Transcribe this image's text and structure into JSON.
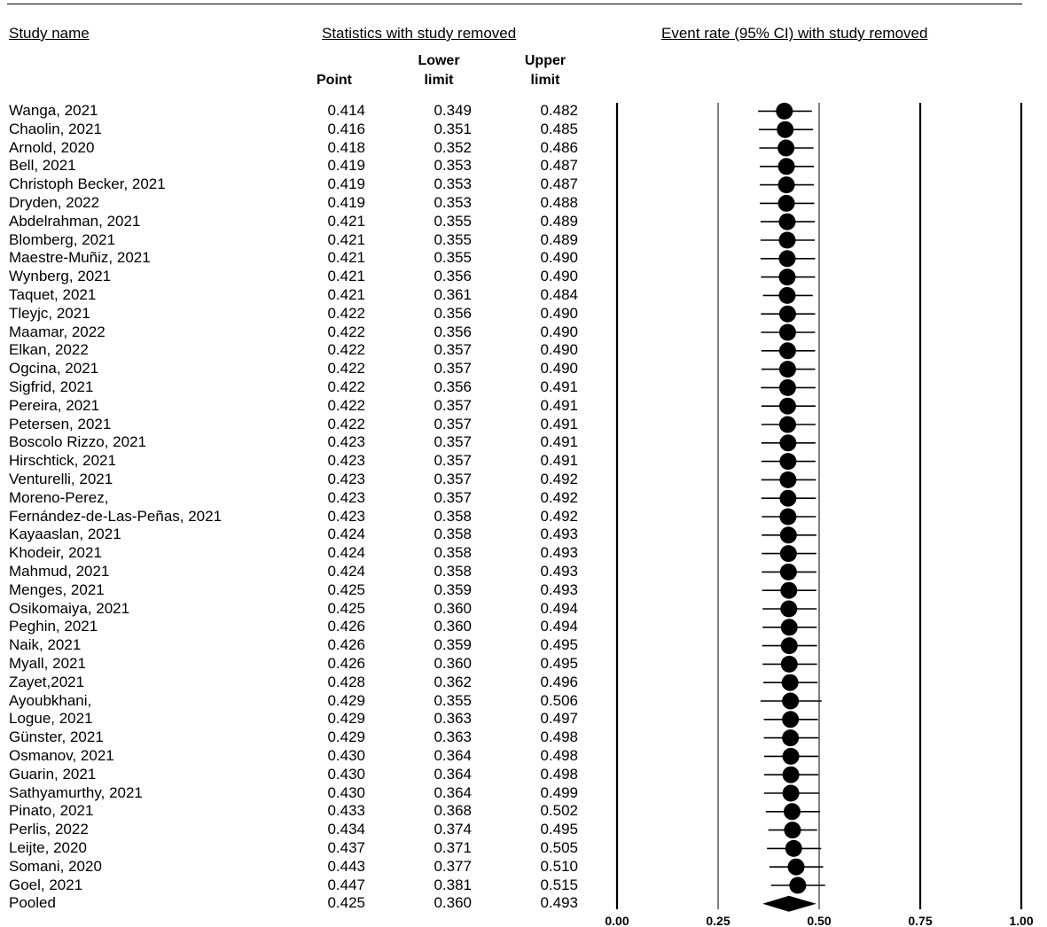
{
  "headers": {
    "study_name": "Study name",
    "statistics": "Statistics with study removed",
    "plot_title": "Event rate (95% CI) with study removed",
    "point": "Point",
    "lower": "Lower limit",
    "upper": "Upper limit"
  },
  "chart_data": {
    "type": "forest",
    "xlim": [
      0,
      1
    ],
    "ticks": [
      "0.00",
      "0.25",
      "0.50",
      "0.75",
      "1.00"
    ],
    "rows": [
      {
        "study": "Wanga, 2021",
        "point": "0.414",
        "lower": "0.349",
        "upper": "0.482"
      },
      {
        "study": "Chaolin, 2021",
        "point": "0.416",
        "lower": "0.351",
        "upper": "0.485"
      },
      {
        "study": "Arnold, 2020",
        "point": "0.418",
        "lower": "0.352",
        "upper": "0.486"
      },
      {
        "study": "Bell, 2021",
        "point": "0.419",
        "lower": "0.353",
        "upper": "0.487"
      },
      {
        "study": "Christoph Becker, 2021",
        "point": "0.419",
        "lower": "0.353",
        "upper": "0.487"
      },
      {
        "study": "Dryden, 2022",
        "point": "0.419",
        "lower": "0.353",
        "upper": "0.488"
      },
      {
        "study": "Abdelrahman, 2021",
        "point": "0.421",
        "lower": "0.355",
        "upper": "0.489"
      },
      {
        "study": "Blomberg, 2021",
        "point": "0.421",
        "lower": "0.355",
        "upper": "0.489"
      },
      {
        "study": "Maestre-Muñiz, 2021",
        "point": "0.421",
        "lower": "0.355",
        "upper": "0.490"
      },
      {
        "study": "Wynberg, 2021",
        "point": "0.421",
        "lower": "0.356",
        "upper": "0.490"
      },
      {
        "study": "Taquet, 2021",
        "point": "0.421",
        "lower": "0.361",
        "upper": "0.484"
      },
      {
        "study": "Tleyjc, 2021",
        "point": "0.422",
        "lower": "0.356",
        "upper": "0.490"
      },
      {
        "study": "Maamar, 2022",
        "point": "0.422",
        "lower": "0.356",
        "upper": "0.490"
      },
      {
        "study": "Elkan, 2022",
        "point": "0.422",
        "lower": "0.357",
        "upper": "0.490"
      },
      {
        "study": "Ogcina, 2021",
        "point": "0.422",
        "lower": "0.357",
        "upper": "0.490"
      },
      {
        "study": "Sigfrid, 2021",
        "point": "0.422",
        "lower": "0.356",
        "upper": "0.491"
      },
      {
        "study": "Pereira, 2021",
        "point": "0.422",
        "lower": "0.357",
        "upper": "0.491"
      },
      {
        "study": "Petersen, 2021",
        "point": "0.422",
        "lower": "0.357",
        "upper": "0.491"
      },
      {
        "study": "Boscolo Rizzo, 2021",
        "point": "0.423",
        "lower": "0.357",
        "upper": "0.491"
      },
      {
        "study": "Hirschtick, 2021",
        "point": "0.423",
        "lower": "0.357",
        "upper": "0.491"
      },
      {
        "study": "Venturelli, 2021",
        "point": "0.423",
        "lower": "0.357",
        "upper": "0.492"
      },
      {
        "study": "Moreno-Perez,",
        "point": "0.423",
        "lower": "0.357",
        "upper": "0.492"
      },
      {
        "study": "Fernández-de-Las-Peñas, 2021",
        "point": "0.423",
        "lower": "0.358",
        "upper": "0.492"
      },
      {
        "study": "Kayaaslan, 2021",
        "point": "0.424",
        "lower": "0.358",
        "upper": "0.493"
      },
      {
        "study": "Khodeir, 2021",
        "point": "0.424",
        "lower": "0.358",
        "upper": "0.493"
      },
      {
        "study": "Mahmud, 2021",
        "point": "0.424",
        "lower": "0.358",
        "upper": "0.493"
      },
      {
        "study": "Menges, 2021",
        "point": "0.425",
        "lower": "0.359",
        "upper": "0.493"
      },
      {
        "study": "Osikomaiya, 2021",
        "point": "0.425",
        "lower": "0.360",
        "upper": "0.494"
      },
      {
        "study": "Peghin, 2021",
        "point": "0.426",
        "lower": "0.360",
        "upper": "0.494"
      },
      {
        "study": "Naik, 2021",
        "point": "0.426",
        "lower": "0.359",
        "upper": "0.495"
      },
      {
        "study": "Myall, 2021",
        "point": "0.426",
        "lower": "0.360",
        "upper": "0.495"
      },
      {
        "study": "Zayet,2021",
        "point": "0.428",
        "lower": "0.362",
        "upper": "0.496"
      },
      {
        "study": "Ayoubkhani,",
        "point": "0.429",
        "lower": "0.355",
        "upper": "0.506"
      },
      {
        "study": "Logue, 2021",
        "point": "0.429",
        "lower": "0.363",
        "upper": "0.497"
      },
      {
        "study": "Günster, 2021",
        "point": "0.429",
        "lower": "0.363",
        "upper": "0.498"
      },
      {
        "study": "Osmanov, 2021",
        "point": "0.430",
        "lower": "0.364",
        "upper": "0.498"
      },
      {
        "study": "Guarin, 2021",
        "point": "0.430",
        "lower": "0.364",
        "upper": "0.498"
      },
      {
        "study": "Sathyamurthy, 2021",
        "point": "0.430",
        "lower": "0.364",
        "upper": "0.499"
      },
      {
        "study": "Pinato, 2021",
        "point": "0.433",
        "lower": "0.368",
        "upper": "0.502"
      },
      {
        "study": "Perlis, 2022",
        "point": "0.434",
        "lower": "0.374",
        "upper": "0.495"
      },
      {
        "study": "Leijte, 2020",
        "point": "0.437",
        "lower": "0.371",
        "upper": "0.505"
      },
      {
        "study": "Somani, 2020",
        "point": "0.443",
        "lower": "0.377",
        "upper": "0.510"
      },
      {
        "study": "Goel, 2021",
        "point": "0.447",
        "lower": "0.381",
        "upper": "0.515"
      }
    ],
    "pooled": {
      "study": "Pooled",
      "point": "0.425",
      "lower": "0.360",
      "upper": "0.493"
    }
  }
}
